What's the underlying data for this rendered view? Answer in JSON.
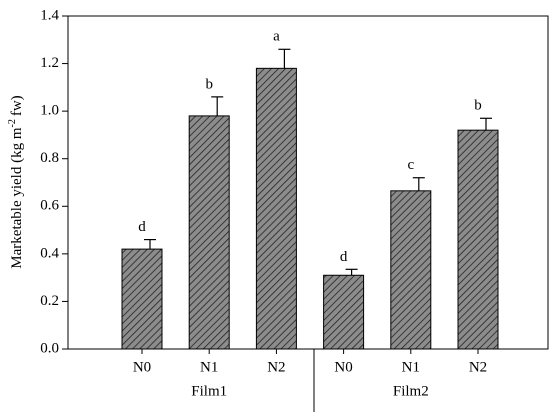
{
  "chart_data": {
    "type": "bar",
    "ylabel": "Marketable yield (kg m",
    "ylabel_sup": "-2",
    "ylabel_end": "fw)",
    "categories": [
      "N0",
      "N1",
      "N2",
      "N0",
      "N1",
      "N2"
    ],
    "groups": [
      "Film1",
      "Film2"
    ],
    "values": [
      0.42,
      0.98,
      1.18,
      0.31,
      0.665,
      0.92
    ],
    "errors": [
      0.04,
      0.08,
      0.08,
      0.025,
      0.055,
      0.05
    ],
    "letters": [
      "d",
      "b",
      "a",
      "d",
      "c",
      "b"
    ],
    "color": "#8c8c8c",
    "ylim": [
      0,
      1.4
    ],
    "yticks": [
      {
        "value": 0,
        "label": "0.0"
      },
      0.2,
      0.4,
      0.6,
      0.8,
      {
        "value": 1,
        "label": "1.0"
      },
      1.2,
      1.4
    ]
  }
}
